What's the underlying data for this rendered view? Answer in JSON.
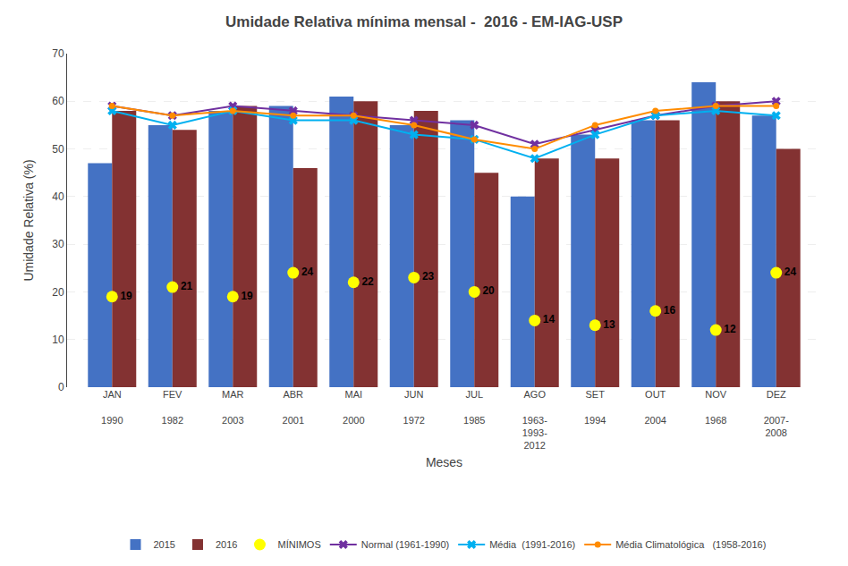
{
  "chart_data": {
    "type": "bar",
    "title": "Umidade Relativa mínima mensal -  2016 - EM-IAG-USP",
    "x_label": "Meses",
    "y_label": "Umidade Relativa (%)",
    "categories": [
      "JAN\n\n1990",
      "FEV\n\n1982",
      "MAR\n\n2003",
      "ABR\n\n2001",
      "MAI\n\n2000",
      "JUN\n\n1972",
      "JUL\n\n1985",
      "AGO\n\n1963-\n1993-\n2012",
      "SET\n\n1994",
      "OUT\n\n2004",
      "NOV\n\n1968",
      "DEZ\n\n2007-\n2008"
    ],
    "series": [
      {
        "name": "2015",
        "type": "bar",
        "color": "#4472C4",
        "values": [
          47,
          55,
          58,
          59,
          61,
          55,
          56,
          40,
          53,
          56,
          64,
          57
        ]
      },
      {
        "name": "2016",
        "type": "bar",
        "color": "#833232",
        "values": [
          58,
          54,
          59,
          46,
          60,
          58,
          45,
          48,
          48,
          56,
          60,
          50
        ]
      },
      {
        "name": "MÍNIMOS",
        "type": "scatter",
        "color": "#FFFF00",
        "marker": "circle",
        "data_labels": true,
        "values": [
          19,
          21,
          19,
          24,
          22,
          23,
          20,
          14,
          13,
          16,
          12,
          24
        ]
      },
      {
        "name": "Normal (1961-1990)",
        "type": "line",
        "color": "#7030A0",
        "marker": "x",
        "line_style": "solid",
        "values": [
          59,
          57,
          59,
          58,
          57,
          56,
          55,
          51,
          54,
          57,
          59,
          60
        ]
      },
      {
        "name": "Média  (1991-2016)",
        "type": "line",
        "color": "#00B0F0",
        "marker": "x",
        "line_style": "solid",
        "values": [
          58,
          55,
          58,
          56,
          56,
          53,
          52,
          48,
          53,
          57,
          58,
          57
        ]
      },
      {
        "name": "Média Climatológica   (1958-2016)",
        "type": "line",
        "color": "#FF8C00",
        "marker": "circle",
        "line_style": "solid",
        "values": [
          59,
          57,
          58,
          57,
          57,
          55,
          52,
          50,
          55,
          58,
          59,
          59
        ]
      }
    ],
    "ylim": [
      0,
      70
    ],
    "yticks": [
      0,
      10,
      20,
      30,
      40,
      50,
      60,
      70
    ],
    "grid": true,
    "legend": "bottom"
  }
}
